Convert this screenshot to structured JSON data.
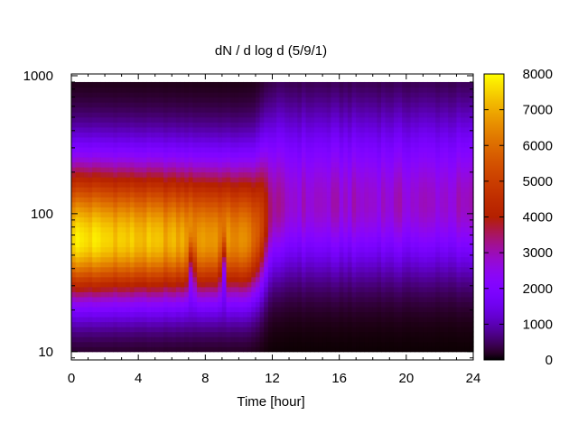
{
  "chart_data": {
    "type": "heatmap",
    "title": "dN / d log d (5/9/1)",
    "xlabel": "Time [hour]",
    "ylabel": "",
    "xlim": [
      0,
      24
    ],
    "ylim": [
      8.7,
      1030
    ],
    "y_scale": "log",
    "x_ticks": [
      0,
      4,
      8,
      12,
      16,
      20,
      24
    ],
    "y_ticks": [
      10,
      100,
      1000
    ],
    "colorbar": {
      "range": [
        0,
        8000
      ],
      "ticks": [
        0,
        1000,
        2000,
        3000,
        4000,
        5000,
        6000,
        7000,
        8000
      ],
      "palette": "gnuplot"
    },
    "features": {
      "peak_diameter_before_12h": 65,
      "peak_value_before_12h": 7800,
      "mode_diameter_after_12h": 120,
      "mode_value_after_12h": 2800,
      "transition_hour": 11.5,
      "dips_at_hours": [
        7.2,
        9.1
      ],
      "diameter_range_measured": [
        10,
        900
      ]
    }
  }
}
